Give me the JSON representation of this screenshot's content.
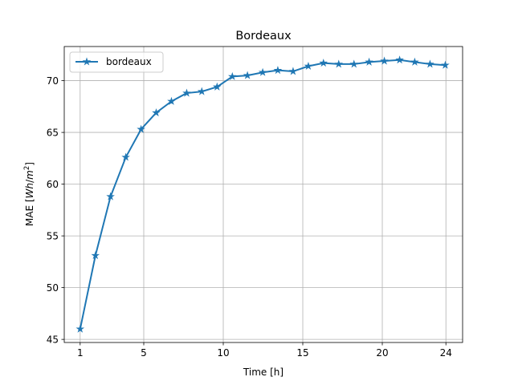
{
  "chart_data": {
    "type": "line",
    "title": "Bordeaux",
    "xlabel": "Time [h]",
    "ylabel_prefix": "MAE [",
    "ylabel_unit_a": "Wh",
    "ylabel_unit_b": "/",
    "ylabel_unit_c": "m",
    "ylabel_exp": "2",
    "ylabel_suffix": "]",
    "xlim": [
      0.0,
      25.05
    ],
    "ylim": [
      44.7,
      73.3
    ],
    "xticks": [
      1,
      5,
      10,
      15,
      20,
      24
    ],
    "xtick_labels": [
      "1",
      "5",
      "10",
      "15",
      "20",
      "24"
    ],
    "yticks": [
      45,
      50,
      55,
      60,
      65,
      70
    ],
    "ytick_labels": [
      "45",
      "50",
      "55",
      "60",
      "65",
      "70"
    ],
    "grid": true,
    "legend_position": "upper-left",
    "series": [
      {
        "name": "bordeaux",
        "color": "#1f77b4",
        "marker": "star",
        "x": [
          1.0,
          1.96,
          2.91,
          3.87,
          4.83,
          5.78,
          6.74,
          7.7,
          8.65,
          9.61,
          10.57,
          11.52,
          12.48,
          13.43,
          14.39,
          15.35,
          16.3,
          17.26,
          18.22,
          19.17,
          20.13,
          21.09,
          22.04,
          23.0,
          23.96
        ],
        "values": [
          46.0,
          53.1,
          58.8,
          62.6,
          65.3,
          66.9,
          68.0,
          68.8,
          68.95,
          69.4,
          70.4,
          70.5,
          70.8,
          71.0,
          70.9,
          71.4,
          71.7,
          71.6,
          71.6,
          71.8,
          71.9,
          72.0,
          71.8,
          71.6,
          71.5
        ]
      }
    ]
  },
  "style": {
    "grid_color": "#b0b0b0",
    "axis_color": "#000000",
    "background": "#ffffff"
  }
}
